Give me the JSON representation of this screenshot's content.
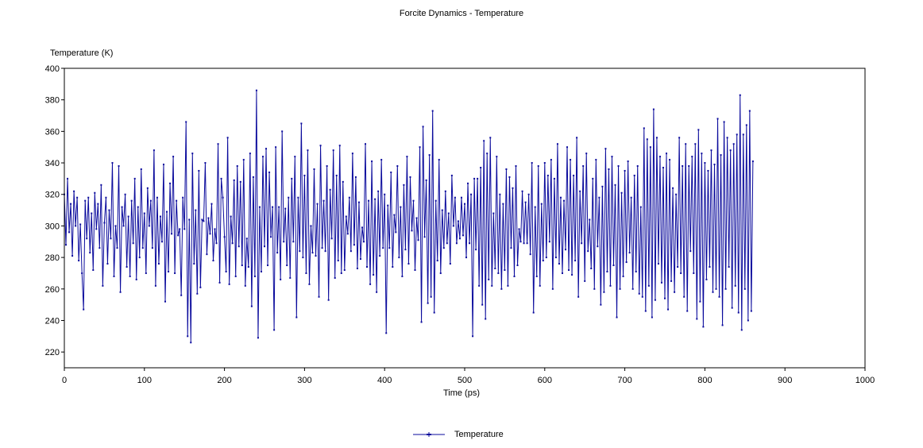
{
  "chart_data": {
    "type": "line",
    "title": "Forcite Dynamics - Temperature",
    "xlabel": "Time (ps)",
    "ylabel": "Temperature (K)",
    "xlim": [
      0,
      1000
    ],
    "ylim": [
      210,
      400
    ],
    "xticks": [
      0,
      100,
      200,
      300,
      400,
      500,
      600,
      700,
      800,
      900,
      1000
    ],
    "yticks": [
      220,
      240,
      260,
      280,
      300,
      320,
      340,
      360,
      380,
      400
    ],
    "grid": false,
    "legend_position": "bottom",
    "series": [
      {
        "name": "Temperature",
        "color": "#0a0a9c",
        "x_start": 0,
        "x_step": 2,
        "values": [
          320,
          288,
          330,
          296,
          314,
          281,
          322,
          300,
          318,
          278,
          301,
          270,
          247,
          316,
          292,
          318,
          283,
          308,
          272,
          321,
          298,
          314,
          286,
          326,
          262,
          302,
          318,
          276,
          310,
          292,
          340,
          268,
          300,
          286,
          338,
          258,
          312,
          300,
          320,
          274,
          306,
          268,
          316,
          289,
          330,
          266,
          312,
          280,
          336,
          286,
          308,
          270,
          324,
          300,
          316,
          286,
          348,
          262,
          318,
          276,
          306,
          290,
          339,
          252,
          309,
          271,
          327,
          295,
          344,
          270,
          316,
          294,
          298,
          256,
          318,
          298,
          366,
          230,
          304,
          226,
          346,
          276,
          310,
          257,
          335,
          261,
          304,
          303,
          340,
          282,
          305,
          295,
          314,
          278,
          298,
          289,
          352,
          264,
          330,
          318,
          293,
          271,
          356,
          263,
          306,
          289,
          329,
          268,
          338,
          287,
          328,
          275,
          342,
          262,
          292,
          274,
          346,
          249,
          331,
          268,
          386,
          229,
          312,
          271,
          344,
          287,
          349,
          275,
          334,
          293,
          312,
          234,
          350,
          283,
          312,
          266,
          360,
          290,
          311,
          275,
          318,
          267,
          330,
          290,
          344,
          242,
          318,
          284,
          365,
          280,
          332,
          270,
          348,
          263,
          300,
          283,
          336,
          281,
          314,
          255,
          351,
          286,
          316,
          284,
          338,
          253,
          323,
          292,
          348,
          267,
          332,
          278,
          351,
          270,
          328,
          272,
          306,
          295,
          318,
          284,
          346,
          288,
          331,
          273,
          315,
          279,
          299,
          290,
          352,
          274,
          316,
          263,
          341,
          269,
          317,
          258,
          322,
          281,
          342,
          286,
          320,
          232,
          313,
          286,
          334,
          274,
          307,
          296,
          338,
          280,
          312,
          268,
          326,
          285,
          344,
          276,
          331,
          297,
          316,
          272,
          305,
          291,
          350,
          239,
          363,
          293,
          329,
          251,
          345,
          255,
          373,
          245,
          316,
          278,
          342,
          270,
          310,
          286,
          322,
          289,
          308,
          276,
          332,
          300,
          318,
          289,
          303,
          292,
          318,
          294,
          314,
          280,
          327,
          289,
          320,
          230,
          330,
          285,
          330,
          262,
          337,
          250,
          354,
          241,
          346,
          266,
          356,
          262,
          308,
          273,
          344,
          270,
          320,
          260,
          314,
          272,
          336,
          262,
          331,
          286,
          324,
          268,
          338,
          275,
          298,
          290,
          322,
          289,
          315,
          289,
          320,
          282,
          340,
          245,
          312,
          268,
          338,
          262,
          314,
          278,
          340,
          280,
          332,
          290,
          342,
          260,
          330,
          280,
          352,
          276,
          318,
          270,
          316,
          285,
          350,
          272,
          342,
          269,
          332,
          278,
          356,
          255,
          322,
          289,
          338,
          265,
          346,
          284,
          304,
          273,
          330,
          260,
          342,
          287,
          318,
          250,
          325,
          258,
          349,
          271,
          336,
          262,
          344,
          275,
          326,
          242,
          338,
          260,
          321,
          268,
          335,
          277,
          341,
          283,
          318,
          260,
          332,
          271,
          338,
          257,
          312,
          255,
          362,
          246,
          355,
          262,
          350,
          242,
          374,
          253,
          356,
          276,
          344,
          264,
          337,
          254,
          346,
          247,
          342,
          265,
          324,
          258,
          320,
          274,
          356,
          270,
          338,
          255,
          352,
          246,
          338,
          284,
          344,
          270,
          352,
          241,
          361,
          252,
          346,
          236,
          340,
          266,
          335,
          274,
          348,
          258,
          339,
          260,
          368,
          255,
          345,
          237,
          366,
          260,
          356,
          274,
          348,
          248,
          352,
          262,
          358,
          245,
          383,
          234,
          358,
          260,
          364,
          240,
          373,
          246,
          341
        ]
      }
    ]
  }
}
